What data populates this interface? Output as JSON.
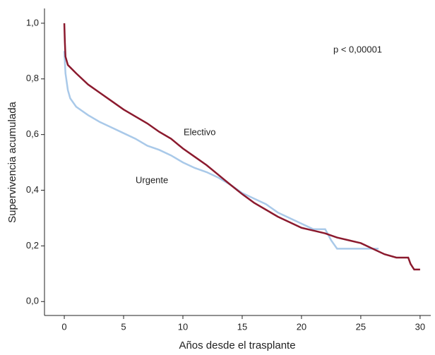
{
  "chart_data": {
    "type": "line",
    "xlabel": "Años desde el trasplante",
    "ylabel": "Supervivencia acumulada",
    "annotations": [
      "p < 0,00001",
      "Electivo",
      "Urgente"
    ],
    "xlim": [
      -1.67,
      30.9
    ],
    "ylim": [
      -0.05,
      1.053
    ],
    "xticks": [
      0,
      5,
      10,
      15,
      20,
      25,
      30
    ],
    "yticks": [
      {
        "value": 0,
        "label": "0,0"
      },
      {
        "value": 0.2,
        "label": "0,2"
      },
      {
        "value": 0.4,
        "label": "0,4"
      },
      {
        "value": 0.6,
        "label": "0,6"
      },
      {
        "value": 0.8,
        "label": "0,8"
      },
      {
        "value": 1,
        "label": "1,0"
      }
    ],
    "series": [
      {
        "name": "Electivo",
        "color": "#8b1a2e",
        "x": [
          0,
          0.05,
          0.1,
          0.3,
          1,
          2,
          3,
          4,
          5,
          6,
          7,
          8,
          9,
          10,
          11,
          12,
          13,
          14,
          15,
          16,
          17,
          18,
          19,
          20,
          21,
          22,
          23,
          24,
          25,
          26,
          27,
          28,
          29,
          29.2,
          29.5,
          30
        ],
        "values": [
          1.0,
          0.93,
          0.88,
          0.85,
          0.82,
          0.78,
          0.75,
          0.72,
          0.69,
          0.665,
          0.64,
          0.61,
          0.585,
          0.55,
          0.52,
          0.49,
          0.455,
          0.42,
          0.386,
          0.355,
          0.33,
          0.305,
          0.285,
          0.265,
          0.255,
          0.245,
          0.23,
          0.22,
          0.21,
          0.19,
          0.17,
          0.158,
          0.158,
          0.135,
          0.115,
          0.115
        ]
      },
      {
        "name": "Urgente",
        "color": "#a9c9e9",
        "x": [
          0,
          0.1,
          0.3,
          0.5,
          1,
          2,
          3,
          4,
          5,
          6,
          7,
          8,
          9,
          10,
          11,
          12,
          13,
          14,
          15,
          16,
          17,
          18,
          19,
          20,
          21,
          22,
          22.5,
          23,
          24,
          25,
          26,
          26.5
        ],
        "values": [
          0.9,
          0.82,
          0.76,
          0.73,
          0.7,
          0.67,
          0.645,
          0.625,
          0.605,
          0.585,
          0.56,
          0.545,
          0.525,
          0.5,
          0.48,
          0.465,
          0.445,
          0.42,
          0.39,
          0.37,
          0.35,
          0.32,
          0.3,
          0.28,
          0.26,
          0.26,
          0.22,
          0.19,
          0.19,
          0.19,
          0.19,
          0.19
        ]
      }
    ]
  }
}
